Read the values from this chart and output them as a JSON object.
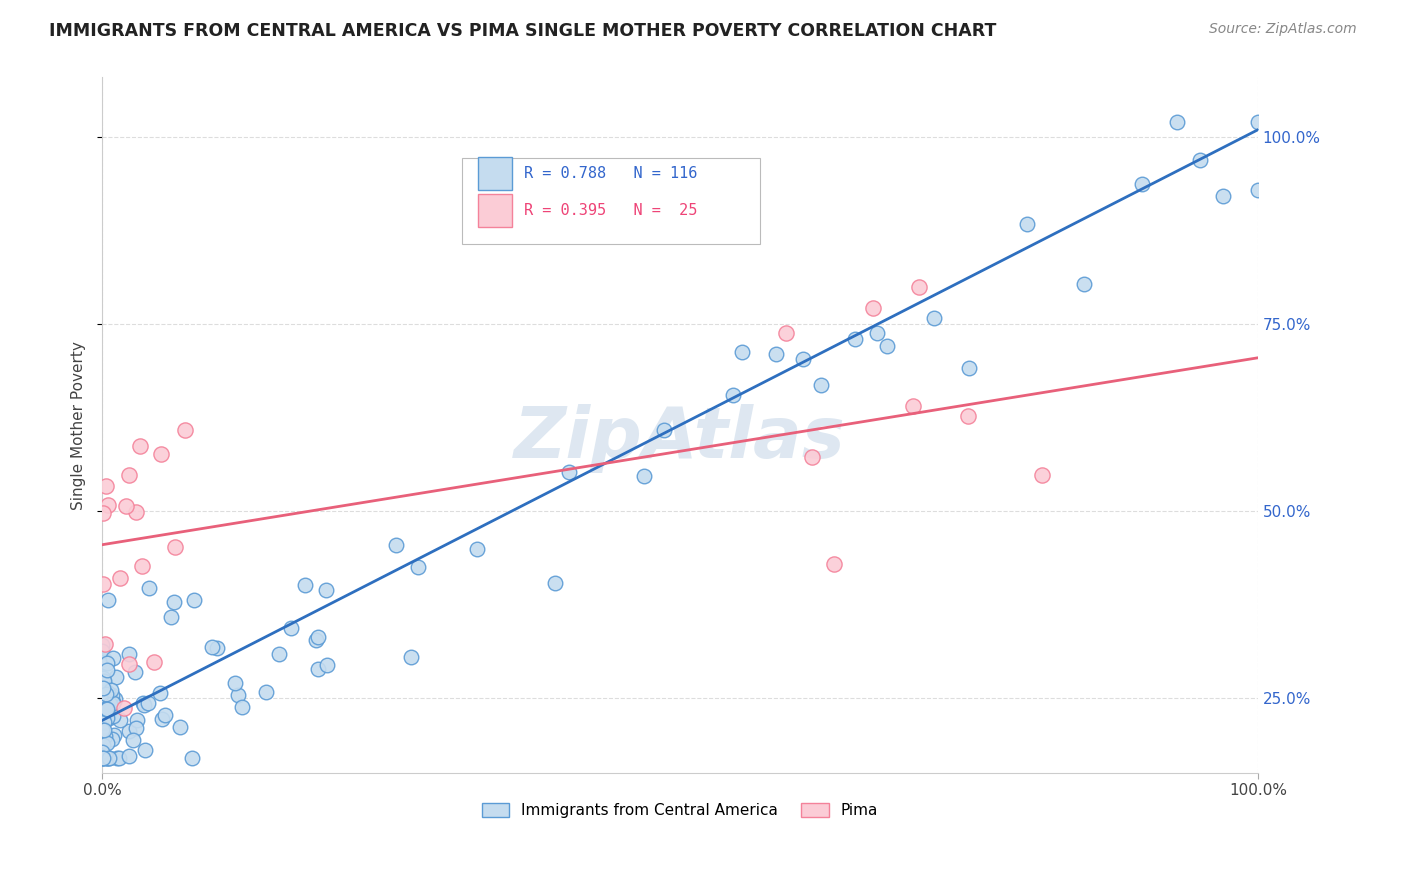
{
  "title": "IMMIGRANTS FROM CENTRAL AMERICA VS PIMA SINGLE MOTHER POVERTY CORRELATION CHART",
  "source": "Source: ZipAtlas.com",
  "ylabel": "Single Mother Poverty",
  "y_tick_positions": [
    0.25,
    0.5,
    0.75,
    1.0
  ],
  "y_tick_labels": [
    "25.0%",
    "50.0%",
    "75.0%",
    "100.0%"
  ],
  "x_tick_labels": [
    "0.0%",
    "100.0%"
  ],
  "blue_line_x": [
    0.0,
    1.0
  ],
  "blue_line_y": [
    0.22,
    1.01
  ],
  "pink_line_x": [
    0.0,
    1.0
  ],
  "pink_line_y": [
    0.455,
    0.705
  ],
  "blue_color": "#5B9BD5",
  "blue_face": "#C5DCEF",
  "pink_color": "#F4829A",
  "pink_face": "#FBCCD6",
  "grid_color": "#DDDDDD",
  "background_color": "#FFFFFF",
  "xlim": [
    0.0,
    1.0
  ],
  "ylim": [
    0.15,
    1.08
  ],
  "watermark_color": "#C8D8E8",
  "watermark_alpha": 0.6
}
